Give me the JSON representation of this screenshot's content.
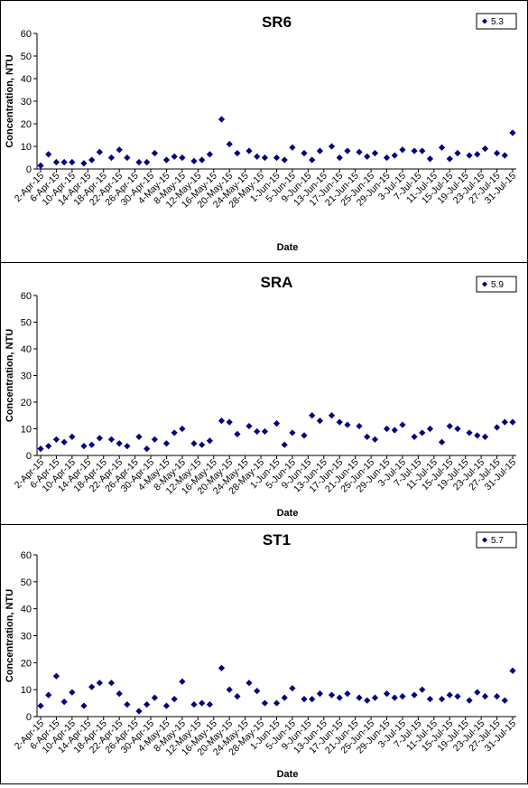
{
  "chart_data": [
    {
      "type": "scatter",
      "title": "SR6",
      "xlabel": "Date",
      "ylabel": "Concentration, NTU",
      "ylim": [
        0,
        60
      ],
      "yticks": [
        0,
        10,
        20,
        30,
        40,
        50,
        60
      ],
      "grid": false,
      "legend_position": "top-right",
      "marker_color": "#000080",
      "x_tick_labels": [
        "2-Apr-15",
        "6-Apr-15",
        "10-Apr-15",
        "14-Apr-15",
        "18-Apr-15",
        "22-Apr-15",
        "26-Apr-15",
        "30-Apr-15",
        "4-May-15",
        "8-May-15",
        "12-May-15",
        "16-May-15",
        "20-May-15",
        "24-May-15",
        "28-May-15",
        "1-Jun-15",
        "5-Jun-15",
        "9-Jun-15",
        "13-Jun-15",
        "17-Jun-15",
        "21-Jun-15",
        "25-Jun-15",
        "29-Jun-15",
        "3-Jul-15",
        "7-Jul-15",
        "11-Jul-15",
        "15-Jul-15",
        "19-Jul-15",
        "23-Jul-15",
        "27-Jul-15",
        "31-Jul-15"
      ],
      "series": [
        {
          "name": "5.3",
          "x": [
            "2-Apr-15",
            "4-Apr-15",
            "6-Apr-15",
            "8-Apr-15",
            "10-Apr-15",
            "13-Apr-15",
            "15-Apr-15",
            "17-Apr-15",
            "20-Apr-15",
            "22-Apr-15",
            "24-Apr-15",
            "27-Apr-15",
            "29-Apr-15",
            "1-May-15",
            "4-May-15",
            "6-May-15",
            "8-May-15",
            "11-May-15",
            "13-May-15",
            "15-May-15",
            "18-May-15",
            "20-May-15",
            "22-May-15",
            "25-May-15",
            "27-May-15",
            "29-May-15",
            "1-Jun-15",
            "3-Jun-15",
            "5-Jun-15",
            "8-Jun-15",
            "10-Jun-15",
            "12-Jun-15",
            "15-Jun-15",
            "17-Jun-15",
            "19-Jun-15",
            "22-Jun-15",
            "24-Jun-15",
            "26-Jun-15",
            "29-Jun-15",
            "1-Jul-15",
            "3-Jul-15",
            "6-Jul-15",
            "8-Jul-15",
            "10-Jul-15",
            "13-Jul-15",
            "15-Jul-15",
            "17-Jul-15",
            "20-Jul-15",
            "22-Jul-15",
            "24-Jul-15",
            "27-Jul-15",
            "29-Jul-15",
            "31-Jul-15"
          ],
          "y": [
            1.5,
            6.5,
            3,
            3,
            3,
            2.5,
            4,
            7.5,
            5,
            8.5,
            5,
            3,
            3,
            7,
            4,
            5.5,
            5,
            3.5,
            4,
            6.5,
            22,
            11,
            7,
            8,
            5.5,
            5,
            5,
            4,
            9.5,
            7,
            4,
            8,
            10,
            5,
            8,
            7.5,
            5.5,
            7,
            5,
            6,
            8.5,
            8,
            8,
            4.5,
            9.5,
            4.5,
            7,
            6,
            6.5,
            9,
            7,
            6,
            16
          ]
        }
      ]
    },
    {
      "type": "scatter",
      "title": "SRA",
      "xlabel": "Date",
      "ylabel": "Concentration, NTU",
      "ylim": [
        0,
        60
      ],
      "yticks": [
        0,
        10,
        20,
        30,
        40,
        50,
        60
      ],
      "grid": false,
      "legend_position": "top-right",
      "marker_color": "#000080",
      "x_tick_labels": [
        "2-Apr-15",
        "6-Apr-15",
        "10-Apr-15",
        "14-Apr-15",
        "18-Apr-15",
        "22-Apr-15",
        "26-Apr-15",
        "30-Apr-15",
        "4-May-15",
        "8-May-15",
        "12-May-15",
        "16-May-15",
        "20-May-15",
        "24-May-15",
        "28-May-15",
        "1-Jun-15",
        "5-Jun-15",
        "9-Jun-15",
        "13-Jun-15",
        "17-Jun-15",
        "21-Jun-15",
        "25-Jun-15",
        "29-Jun-15",
        "3-Jul-15",
        "7-Jul-15",
        "11-Jul-15",
        "15-Jul-15",
        "19-Jul-15",
        "23-Jul-15",
        "27-Jul-15",
        "31-Jul-15"
      ],
      "series": [
        {
          "name": "5.9",
          "x": [
            "2-Apr-15",
            "4-Apr-15",
            "6-Apr-15",
            "8-Apr-15",
            "10-Apr-15",
            "13-Apr-15",
            "15-Apr-15",
            "17-Apr-15",
            "20-Apr-15",
            "22-Apr-15",
            "24-Apr-15",
            "27-Apr-15",
            "29-Apr-15",
            "1-May-15",
            "4-May-15",
            "6-May-15",
            "8-May-15",
            "11-May-15",
            "13-May-15",
            "15-May-15",
            "18-May-15",
            "20-May-15",
            "22-May-15",
            "25-May-15",
            "27-May-15",
            "29-May-15",
            "1-Jun-15",
            "3-Jun-15",
            "5-Jun-15",
            "8-Jun-15",
            "10-Jun-15",
            "12-Jun-15",
            "15-Jun-15",
            "17-Jun-15",
            "19-Jun-15",
            "22-Jun-15",
            "24-Jun-15",
            "26-Jun-15",
            "29-Jun-15",
            "1-Jul-15",
            "3-Jul-15",
            "6-Jul-15",
            "8-Jul-15",
            "10-Jul-15",
            "13-Jul-15",
            "15-Jul-15",
            "17-Jul-15",
            "20-Jul-15",
            "22-Jul-15",
            "24-Jul-15",
            "27-Jul-15",
            "29-Jul-15",
            "31-Jul-15"
          ],
          "y": [
            2.5,
            3.5,
            6,
            5,
            7,
            3.5,
            4,
            6.5,
            6,
            4.5,
            3.5,
            7,
            2.5,
            6,
            4.5,
            8.5,
            10,
            4.5,
            4,
            5.5,
            13,
            12.5,
            8,
            11,
            9,
            9,
            12,
            4,
            8.5,
            7.5,
            15,
            13,
            15,
            12.5,
            11.5,
            11,
            7,
            6,
            10,
            9.5,
            11.5,
            7,
            8.5,
            10,
            5,
            11,
            10,
            8.5,
            7.5,
            7,
            10.5,
            12.5,
            12.5
          ]
        }
      ]
    },
    {
      "type": "scatter",
      "title": "ST1",
      "xlabel": "Date",
      "ylabel": "Concentration, NTU",
      "ylim": [
        0,
        60
      ],
      "yticks": [
        0,
        10,
        20,
        30,
        40,
        50,
        60
      ],
      "grid": false,
      "legend_position": "top-right",
      "marker_color": "#000080",
      "x_tick_labels": [
        "2-Apr-15",
        "6-Apr-15",
        "10-Apr-15",
        "14-Apr-15",
        "18-Apr-15",
        "22-Apr-15",
        "26-Apr-15",
        "30-Apr-15",
        "4-May-15",
        "8-May-15",
        "12-May-15",
        "16-May-15",
        "20-May-15",
        "24-May-15",
        "28-May-15",
        "1-Jun-15",
        "5-Jun-15",
        "9-Jun-15",
        "13-Jun-15",
        "17-Jun-15",
        "21-Jun-15",
        "25-Jun-15",
        "29-Jun-15",
        "3-Jul-15",
        "7-Jul-15",
        "11-Jul-15",
        "15-Jul-15",
        "19-Jul-15",
        "23-Jul-15",
        "27-Jul-15",
        "31-Jul-15"
      ],
      "series": [
        {
          "name": "5.7",
          "x": [
            "2-Apr-15",
            "4-Apr-15",
            "6-Apr-15",
            "8-Apr-15",
            "10-Apr-15",
            "13-Apr-15",
            "15-Apr-15",
            "17-Apr-15",
            "20-Apr-15",
            "22-Apr-15",
            "24-Apr-15",
            "27-Apr-15",
            "29-Apr-15",
            "1-May-15",
            "4-May-15",
            "6-May-15",
            "8-May-15",
            "11-May-15",
            "13-May-15",
            "15-May-15",
            "18-May-15",
            "20-May-15",
            "22-May-15",
            "25-May-15",
            "27-May-15",
            "29-May-15",
            "1-Jun-15",
            "3-Jun-15",
            "5-Jun-15",
            "8-Jun-15",
            "10-Jun-15",
            "12-Jun-15",
            "15-Jun-15",
            "17-Jun-15",
            "19-Jun-15",
            "22-Jun-15",
            "24-Jun-15",
            "26-Jun-15",
            "29-Jun-15",
            "1-Jul-15",
            "3-Jul-15",
            "6-Jul-15",
            "8-Jul-15",
            "10-Jul-15",
            "13-Jul-15",
            "15-Jul-15",
            "17-Jul-15",
            "20-Jul-15",
            "22-Jul-15",
            "24-Jul-15",
            "27-Jul-15",
            "29-Jul-15",
            "31-Jul-15"
          ],
          "y": [
            4,
            8,
            15,
            5.5,
            9,
            4,
            11,
            12.5,
            12.5,
            8.5,
            4.5,
            2,
            4.5,
            7,
            4,
            6.5,
            13,
            4.5,
            5,
            4.5,
            18,
            10,
            7.5,
            12.5,
            9.5,
            5,
            5,
            7,
            10.5,
            6.5,
            6.5,
            8.5,
            8,
            7,
            8.5,
            7,
            6,
            7,
            8.5,
            7,
            7.5,
            8,
            10,
            6.5,
            6.5,
            8,
            7.5,
            6,
            9,
            7.5,
            7.5,
            6,
            17
          ]
        }
      ]
    }
  ]
}
